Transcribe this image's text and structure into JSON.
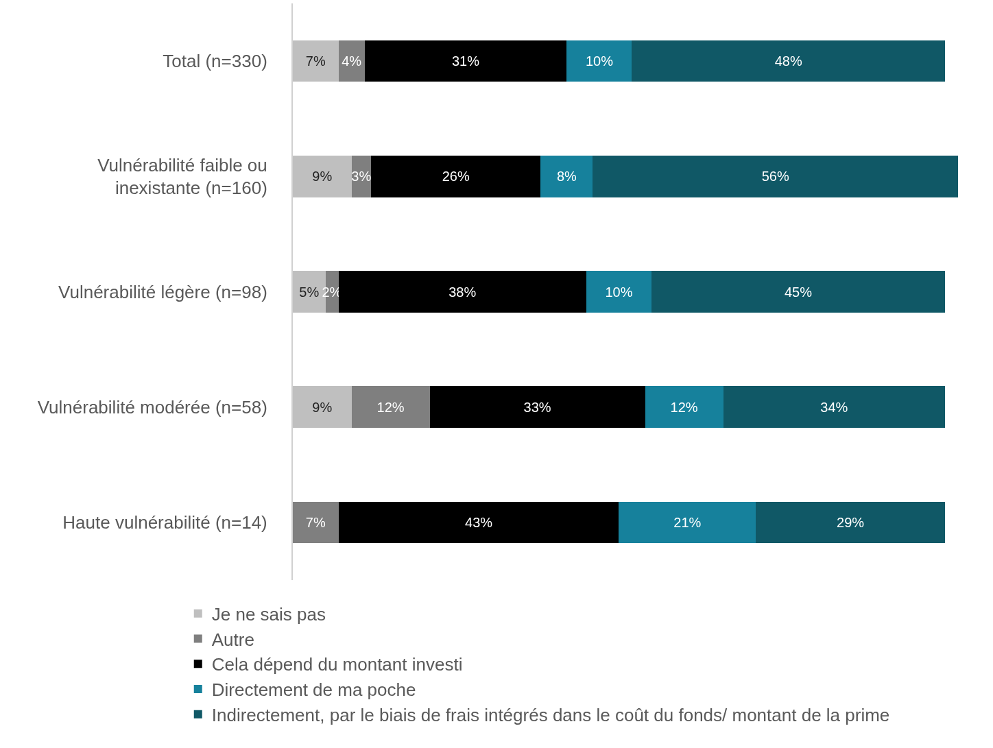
{
  "chart_data": {
    "type": "bar",
    "orientation": "horizontal",
    "stacked": true,
    "categories": [
      "Total (n=330)",
      "Vulnérabilité faible ou inexistante (n=160)",
      "Vulnérabilité légère (n=98)",
      "Vulnérabilité modérée (n=58)",
      "Haute vulnérabilité (n=14)"
    ],
    "series": [
      {
        "name": "Je ne sais pas",
        "color": "#bfbfbf",
        "values": [
          7,
          9,
          5,
          9,
          null
        ],
        "value_labels": [
          "7%",
          "9%",
          "5%",
          "9%",
          null
        ]
      },
      {
        "name": "Autre",
        "color": "#7f7f7f",
        "values": [
          4,
          3,
          2,
          12,
          7
        ],
        "value_labels": [
          "4%",
          "3%",
          "2%",
          "12%",
          "7%"
        ]
      },
      {
        "name": "Cela dépend du montant investi",
        "color": "#000000",
        "values": [
          31,
          26,
          38,
          33,
          43
        ],
        "value_labels": [
          "31%",
          "26%",
          "38%",
          "33%",
          "43%"
        ]
      },
      {
        "name": "Directement de ma poche",
        "color": "#16819c",
        "values": [
          10,
          8,
          10,
          12,
          21
        ],
        "value_labels": [
          "10%",
          "8%",
          "10%",
          "12%",
          "21%"
        ]
      },
      {
        "name": "Indirectement, par le biais de frais intégrés dans le coût du fonds/ montant de la prime",
        "color": "#105866",
        "values": [
          48,
          56,
          45,
          34,
          29
        ],
        "value_labels": [
          "48%",
          "56%",
          "45%",
          "34%",
          "29%"
        ]
      }
    ],
    "legend": "bottom",
    "tick_labels": "y"
  }
}
